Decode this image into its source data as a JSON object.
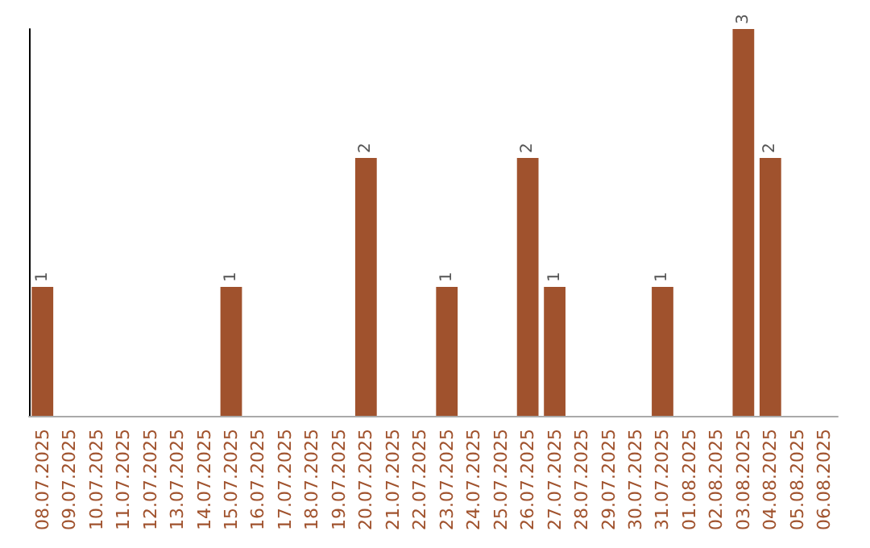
{
  "chart_data": {
    "type": "bar",
    "categories": [
      "08.07.2025",
      "09.07.2025",
      "10.07.2025",
      "11.07.2025",
      "12.07.2025",
      "13.07.2025",
      "14.07.2025",
      "15.07.2025",
      "16.07.2025",
      "17.07.2025",
      "18.07.2025",
      "19.07.2025",
      "20.07.2025",
      "21.07.2025",
      "22.07.2025",
      "23.07.2025",
      "24.07.2025",
      "25.07.2025",
      "26.07.2025",
      "27.07.2025",
      "28.07.2025",
      "29.07.2025",
      "30.07.2025",
      "31.07.2025",
      "01.08.2025",
      "02.08.2025",
      "03.08.2025",
      "04.08.2025",
      "05.08.2025",
      "06.08.2025"
    ],
    "values": [
      1,
      0,
      0,
      0,
      0,
      0,
      0,
      1,
      0,
      0,
      0,
      0,
      2,
      0,
      0,
      1,
      0,
      0,
      2,
      1,
      0,
      0,
      0,
      1,
      0,
      0,
      3,
      2,
      0,
      0
    ],
    "value_labels": [
      "1",
      null,
      null,
      null,
      null,
      null,
      null,
      "1",
      null,
      null,
      null,
      null,
      "2",
      null,
      null,
      "1",
      null,
      null,
      "2",
      "1",
      null,
      null,
      null,
      "1",
      null,
      null,
      "3",
      "2",
      null,
      null
    ],
    "color": "#a0522d",
    "tick_labels": "x"
  }
}
